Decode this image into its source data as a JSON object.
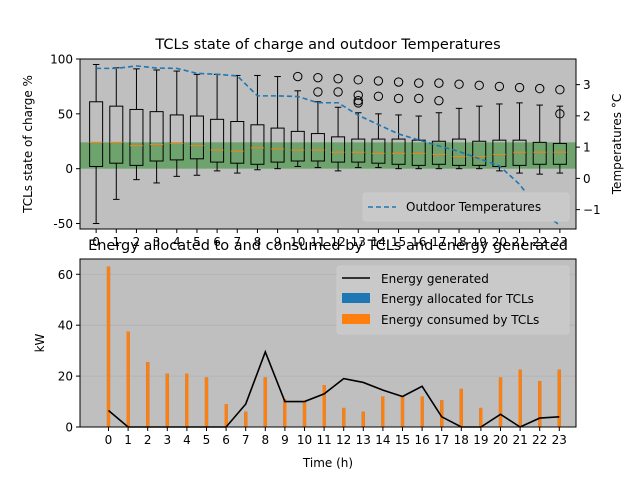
{
  "chart_data": [
    {
      "type": "box",
      "title": "TCLs state of charge and outdoor Temperatures",
      "ylabel": "TCLs state of charge %",
      "y2label": "Temperatures °C",
      "ylim": [
        -55,
        100
      ],
      "y2lim": [
        -1.62,
        3.82
      ],
      "categories": [
        "0",
        "1",
        "2",
        "3",
        "4",
        "5",
        "6",
        "7",
        "8",
        "9",
        "10",
        "11",
        "12",
        "13",
        "14",
        "15",
        "16",
        "17",
        "18",
        "19",
        "20",
        "21",
        "22",
        "23"
      ],
      "yticks": [
        -50,
        0,
        50,
        100
      ],
      "y2ticks": [
        -1,
        0,
        1,
        2,
        3
      ],
      "band": {
        "from": 0,
        "to": 24,
        "color": "#5f9e5f"
      },
      "background": "#bfbfbf",
      "boxes": [
        {
          "whislo": -50,
          "q1": 2,
          "med": 24,
          "q3": 61,
          "whishi": 95,
          "fliers": []
        },
        {
          "whislo": -28,
          "q1": 5,
          "med": 24,
          "q3": 57,
          "whishi": 92,
          "fliers": []
        },
        {
          "whislo": -10,
          "q1": 3,
          "med": 21,
          "q3": 54,
          "whishi": 91,
          "fliers": []
        },
        {
          "whislo": -13,
          "q1": 7,
          "med": 22,
          "q3": 52,
          "whishi": 90,
          "fliers": []
        },
        {
          "whislo": -7,
          "q1": 8,
          "med": 23,
          "q3": 49,
          "whishi": 89,
          "fliers": []
        },
        {
          "whislo": -6,
          "q1": 9,
          "med": 21,
          "q3": 48,
          "whishi": 86,
          "fliers": []
        },
        {
          "whislo": -2,
          "q1": 6,
          "med": 17,
          "q3": 45,
          "whishi": 86,
          "fliers": []
        },
        {
          "whislo": -4,
          "q1": 5,
          "med": 16,
          "q3": 43,
          "whishi": 85,
          "fliers": []
        },
        {
          "whislo": -1,
          "q1": 4,
          "med": 19,
          "q3": 40,
          "whishi": 85,
          "fliers": []
        },
        {
          "whislo": 0,
          "q1": 6,
          "med": 18,
          "q3": 37,
          "whishi": 84,
          "fliers": []
        },
        {
          "whislo": 2,
          "q1": 7,
          "med": 17,
          "q3": 34,
          "whishi": 71,
          "fliers": [
            84
          ]
        },
        {
          "whislo": 1,
          "q1": 7,
          "med": 17,
          "q3": 32,
          "whishi": 61,
          "fliers": [
            70,
            83
          ]
        },
        {
          "whislo": -2,
          "q1": 6,
          "med": 15,
          "q3": 29,
          "whishi": 56,
          "fliers": [
            70,
            82
          ]
        },
        {
          "whislo": 1,
          "q1": 6,
          "med": 15,
          "q3": 27,
          "whishi": 51,
          "fliers": [
            60,
            62,
            67,
            81
          ]
        },
        {
          "whislo": 1,
          "q1": 5,
          "med": 14,
          "q3": 27,
          "whishi": 50,
          "fliers": [
            66,
            80
          ]
        },
        {
          "whislo": 0,
          "q1": 4,
          "med": 14,
          "q3": 27,
          "whishi": 49,
          "fliers": [
            64,
            79
          ]
        },
        {
          "whislo": 0,
          "q1": 3,
          "med": 14,
          "q3": 26,
          "whishi": 48,
          "fliers": [
            64,
            78
          ]
        },
        {
          "whislo": 0,
          "q1": 4,
          "med": 13,
          "q3": 25,
          "whishi": 51,
          "fliers": [
            62,
            78
          ]
        },
        {
          "whislo": 0,
          "q1": 3,
          "med": 11,
          "q3": 27,
          "whishi": 55,
          "fliers": [
            77
          ]
        },
        {
          "whislo": 0,
          "q1": 3,
          "med": 11,
          "q3": 25,
          "whishi": 57,
          "fliers": [
            76
          ]
        },
        {
          "whislo": -2,
          "q1": 2,
          "med": 13,
          "q3": 26,
          "whishi": 59,
          "fliers": [
            75
          ]
        },
        {
          "whislo": -4,
          "q1": 3,
          "med": 15,
          "q3": 26,
          "whishi": 60,
          "fliers": [
            74
          ]
        },
        {
          "whislo": -5,
          "q1": 4,
          "med": 15,
          "q3": 24,
          "whishi": 58,
          "fliers": [
            73
          ]
        },
        {
          "whislo": -4,
          "q1": 4,
          "med": 15,
          "q3": 23,
          "whishi": 57,
          "fliers": [
            50,
            72
          ]
        }
      ],
      "line_series": [
        {
          "name": "Outdoor Temperatures",
          "axis": "y2",
          "style": "dashed",
          "color": "#1f77b4",
          "values": [
            3.52,
            3.52,
            3.6,
            3.53,
            3.52,
            3.36,
            3.33,
            3.28,
            2.64,
            2.64,
            2.62,
            2.42,
            2.42,
            2.02,
            1.72,
            1.42,
            1.23,
            1.04,
            0.86,
            0.63,
            0.4,
            -0.19,
            -1.03,
            -1.5
          ]
        }
      ],
      "legend": {
        "position": "bottom-right",
        "entries": [
          "Outdoor Temperatures"
        ]
      },
      "box_color": "#000000",
      "median_color": "#ff7f0e"
    },
    {
      "type": "bar",
      "title": "Energy allocated to and consumed by TCLs and energy generated",
      "xlabel": "Time (h)",
      "ylabel": "kW",
      "ylim": [
        0,
        66
      ],
      "yticks": [
        0,
        20,
        40,
        60
      ],
      "categories": [
        "0",
        "1",
        "2",
        "3",
        "4",
        "5",
        "6",
        "7",
        "8",
        "9",
        "10",
        "11",
        "12",
        "13",
        "14",
        "15",
        "16",
        "17",
        "18",
        "19",
        "20",
        "21",
        "22",
        "23"
      ],
      "background": "#bfbfbf",
      "grid": "y",
      "series": [
        {
          "name": "Energy generated",
          "kind": "line",
          "color": "#000000",
          "values": [
            6.5,
            0,
            0,
            0,
            0,
            0,
            0,
            9,
            29.5,
            10,
            10,
            13,
            19,
            17.5,
            14.5,
            12,
            16,
            4,
            0,
            0,
            5,
            0,
            3.5,
            4
          ]
        },
        {
          "name": "Energy allocated for TCLs",
          "kind": "bar",
          "color": "#1f77b4",
          "values": [
            63,
            37.5,
            25.5,
            21,
            21,
            19.5,
            9,
            6,
            19.5,
            11,
            10,
            16.5,
            7.5,
            6,
            12,
            12,
            12,
            10.5,
            15,
            7.5,
            19.5,
            22.5,
            18,
            22.5
          ]
        },
        {
          "name": "Energy consumed by TCLs",
          "kind": "bar",
          "color": "#ff7f0e",
          "values": [
            63,
            37.5,
            25.5,
            21,
            21,
            19.5,
            9,
            6,
            19.5,
            11,
            10,
            16.5,
            7.5,
            6,
            12,
            12,
            12,
            10.5,
            15,
            7.5,
            19.5,
            22.5,
            18,
            22.5
          ]
        }
      ],
      "legend": {
        "position": "top-right",
        "entries": [
          "Energy generated",
          "Energy allocated for TCLs",
          "Energy consumed by TCLs"
        ]
      }
    }
  ]
}
